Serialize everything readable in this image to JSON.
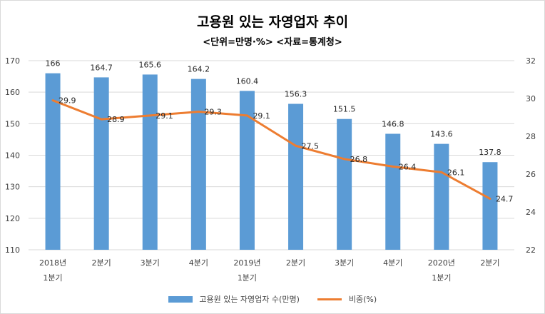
{
  "chart_data": {
    "type": "bar",
    "title": "고용원 있는 자영업자 추이",
    "subtitle": "<단위=만명·%>  <자료=통계청>",
    "categories": [
      [
        "2018년",
        "1분기"
      ],
      [
        "2분기"
      ],
      [
        "3분기"
      ],
      [
        "4분기"
      ],
      [
        "2019년",
        "1분기"
      ],
      [
        "2분기"
      ],
      [
        "3분기"
      ],
      [
        "4분기"
      ],
      [
        "2020년",
        "1분기"
      ],
      [
        "2분기"
      ]
    ],
    "series": [
      {
        "name": "고용원 있는 자영업자 수(만명)",
        "type": "bar",
        "axis": "left",
        "color": "#5b9bd5",
        "values": [
          166,
          164.7,
          165.6,
          164.2,
          160.4,
          156.3,
          151.5,
          146.8,
          143.6,
          137.8
        ],
        "labels": [
          "166",
          "164.7",
          "165.6",
          "164.2",
          "160.4",
          "156.3",
          "151.5",
          "146.8",
          "143.6",
          "137.8"
        ]
      },
      {
        "name": "비중(%)",
        "type": "line",
        "axis": "right",
        "color": "#ed7d31",
        "values": [
          29.9,
          28.9,
          29.1,
          29.3,
          29.1,
          27.5,
          26.8,
          26.4,
          26.1,
          24.7
        ],
        "labels": [
          "29.9",
          "28.9",
          "29.1",
          "29.3",
          "29.1",
          "27.5",
          "26.8",
          "26.4",
          "26.1",
          "24.7"
        ]
      }
    ],
    "y_left": {
      "min": 110,
      "max": 170,
      "step": 10,
      "ticks": [
        "110",
        "120",
        "130",
        "140",
        "150",
        "160",
        "170"
      ]
    },
    "y_right": {
      "min": 22,
      "max": 32,
      "step": 2,
      "ticks": [
        "22",
        "24",
        "26",
        "28",
        "30",
        "32"
      ]
    },
    "legend_position": "bottom"
  }
}
